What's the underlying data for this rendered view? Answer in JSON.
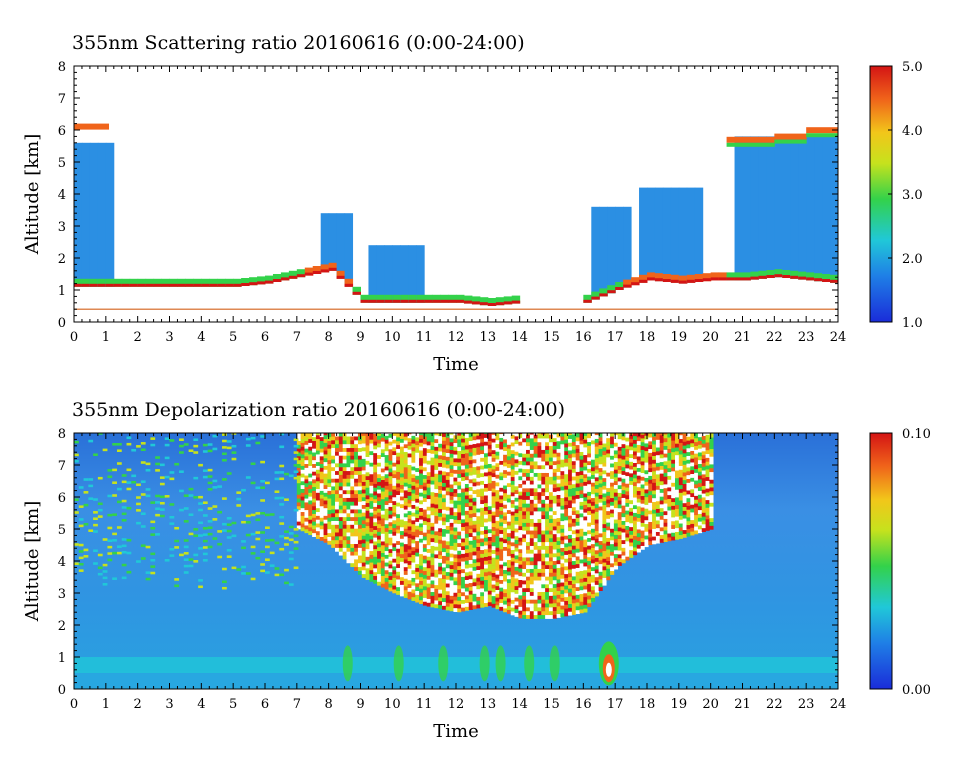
{
  "chart_data": [
    {
      "type": "heatmap",
      "title": "355nm Scattering ratio  20160616 (0:00-24:00)",
      "xlabel": "Time",
      "ylabel": "Altitude [km]",
      "xlim": [
        0,
        24
      ],
      "ylim": [
        0,
        8
      ],
      "x_ticks": [
        "0",
        "1",
        "2",
        "3",
        "4",
        "5",
        "6",
        "7",
        "8",
        "9",
        "10",
        "11",
        "12",
        "13",
        "14",
        "15",
        "16",
        "17",
        "18",
        "19",
        "20",
        "21",
        "22",
        "23",
        "24"
      ],
      "y_ticks": [
        "0",
        "1",
        "2",
        "3",
        "4",
        "5",
        "6",
        "7",
        "8"
      ],
      "colorbar": {
        "min": 1.0,
        "max": 5.0,
        "labels": [
          "1.0",
          "2.0",
          "3.0",
          "4.0",
          "5.0"
        ],
        "colormap": "blue-cyan-green-yellow-orange-red"
      },
      "reference_line_altitude": 0.4,
      "features": [
        {
          "desc": "boundary layer top",
          "x": [
            0,
            1,
            2,
            3,
            4,
            5,
            6,
            7,
            8,
            9,
            10,
            11,
            12,
            13,
            14,
            15,
            16,
            17,
            18,
            19,
            20,
            21,
            22,
            23,
            24
          ],
          "y": [
            1.1,
            1.1,
            1.1,
            1.1,
            1.1,
            1.1,
            1.2,
            1.4,
            1.6,
            0.6,
            0.6,
            0.6,
            0.6,
            0.5,
            0.6,
            null,
            0.6,
            1.0,
            1.3,
            1.2,
            1.3,
            1.3,
            1.4,
            1.3,
            1.2
          ]
        },
        {
          "desc": "upper cloud layer base",
          "x": [
            20.5,
            21,
            22,
            23,
            24
          ],
          "y": [
            5.6,
            5.6,
            5.7,
            5.9,
            6.0
          ]
        }
      ]
    },
    {
      "type": "heatmap",
      "title": "355nm Depolarization ratio  20160616 (0:00-24:00)",
      "xlabel": "Time",
      "ylabel": "Altitude [km]",
      "xlim": [
        0,
        24
      ],
      "ylim": [
        0,
        8
      ],
      "x_ticks": [
        "0",
        "1",
        "2",
        "3",
        "4",
        "5",
        "6",
        "7",
        "8",
        "9",
        "10",
        "11",
        "12",
        "13",
        "14",
        "15",
        "16",
        "17",
        "18",
        "19",
        "20",
        "21",
        "22",
        "23",
        "24"
      ],
      "y_ticks": [
        "0",
        "1",
        "2",
        "3",
        "4",
        "5",
        "6",
        "7",
        "8"
      ],
      "colorbar": {
        "min": 0.0,
        "max": 0.1,
        "labels": [
          "0.00",
          "0.10"
        ],
        "colormap": "blue-cyan-green-yellow-orange-red"
      },
      "features": [
        {
          "desc": "noisy high-depolarization region lower boundary",
          "x": [
            7,
            8,
            9,
            10,
            11,
            12,
            13,
            14,
            15,
            16,
            17,
            18,
            19,
            20
          ],
          "y": [
            5.0,
            4.5,
            3.5,
            3.0,
            2.6,
            2.4,
            2.6,
            2.2,
            2.2,
            2.4,
            3.8,
            4.5,
            4.7,
            5.0
          ]
        },
        {
          "desc": "aerosol layer peak near 16.8h",
          "x": [
            16.8
          ],
          "y": [
            0.4
          ]
        }
      ]
    }
  ]
}
